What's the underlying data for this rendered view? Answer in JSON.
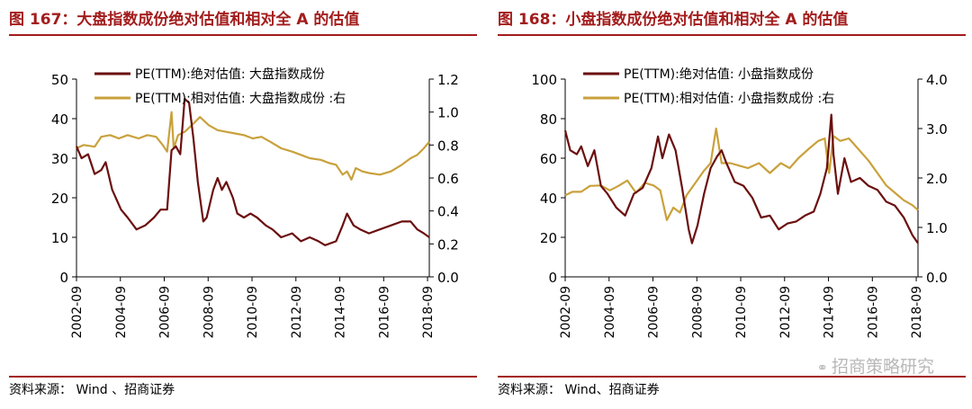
{
  "colors": {
    "absolute": "#6b0f0f",
    "relative": "#c9a13c",
    "accent": "#a31c1c"
  },
  "watermark": "招商策略研究",
  "watermark_icon": "wechat-icon",
  "charts": [
    {
      "id": "p1",
      "title": "图 167：大盘指数成份绝对估值和相对全 A 的估值",
      "source": "资料来源： Wind 、招商证券",
      "chart_data": {
        "type": "line",
        "x_range": [
          2002.67,
          2018.75
        ],
        "x_ticks": [
          "2002-09",
          "2004-09",
          "2006-09",
          "2008-09",
          "2010-09",
          "2012-09",
          "2014-09",
          "2016-09",
          "2018-09"
        ],
        "y_left": {
          "min": 0,
          "max": 50,
          "ticks": [
            "0",
            "10",
            "20",
            "30",
            "40",
            "50"
          ]
        },
        "y_right": {
          "min": 0,
          "max": 1.2,
          "ticks": [
            "0.0",
            "0.2",
            "0.4",
            "0.6",
            "0.8",
            "1.0",
            "1.2"
          ]
        },
        "legend": [
          "PE(TTM):绝对估值: 大盘指数成份",
          "PE(TTM):相对估值: 大盘指数成份 :右"
        ],
        "series": [
          {
            "name": "PE(TTM):绝对估值: 大盘指数成份",
            "axis": "left",
            "points": [
              [
                2002.67,
                33
              ],
              [
                2002.9,
                30
              ],
              [
                2003.2,
                31
              ],
              [
                2003.5,
                26
              ],
              [
                2003.8,
                27
              ],
              [
                2004.0,
                29
              ],
              [
                2004.3,
                22
              ],
              [
                2004.7,
                17
              ],
              [
                2005.0,
                15
              ],
              [
                2005.4,
                12
              ],
              [
                2005.8,
                13
              ],
              [
                2006.2,
                15
              ],
              [
                2006.5,
                17
              ],
              [
                2006.8,
                17
              ],
              [
                2007.0,
                32
              ],
              [
                2007.2,
                33
              ],
              [
                2007.4,
                31
              ],
              [
                2007.6,
                45
              ],
              [
                2007.8,
                44
              ],
              [
                2008.0,
                35
              ],
              [
                2008.2,
                24
              ],
              [
                2008.45,
                14
              ],
              [
                2008.6,
                15
              ],
              [
                2008.9,
                22
              ],
              [
                2009.1,
                25
              ],
              [
                2009.3,
                22
              ],
              [
                2009.5,
                24
              ],
              [
                2009.8,
                20
              ],
              [
                2010.0,
                16
              ],
              [
                2010.3,
                15
              ],
              [
                2010.6,
                16
              ],
              [
                2010.9,
                15
              ],
              [
                2011.3,
                13
              ],
              [
                2011.6,
                12
              ],
              [
                2012.0,
                10
              ],
              [
                2012.5,
                11
              ],
              [
                2012.9,
                9
              ],
              [
                2013.3,
                10
              ],
              [
                2013.7,
                9
              ],
              [
                2014.0,
                8
              ],
              [
                2014.5,
                9
              ],
              [
                2014.8,
                13
              ],
              [
                2015.0,
                16
              ],
              [
                2015.3,
                13
              ],
              [
                2015.6,
                12
              ],
              [
                2016.0,
                11
              ],
              [
                2016.5,
                12
              ],
              [
                2017.0,
                13
              ],
              [
                2017.5,
                14
              ],
              [
                2017.9,
                14
              ],
              [
                2018.2,
                12
              ],
              [
                2018.5,
                11
              ],
              [
                2018.75,
                10
              ]
            ]
          },
          {
            "name": "PE(TTM):相对估值: 大盘指数成份 :右",
            "axis": "right",
            "points": [
              [
                2002.67,
                0.78
              ],
              [
                2003.0,
                0.8
              ],
              [
                2003.5,
                0.79
              ],
              [
                2003.8,
                0.85
              ],
              [
                2004.2,
                0.86
              ],
              [
                2004.6,
                0.84
              ],
              [
                2005.0,
                0.86
              ],
              [
                2005.5,
                0.84
              ],
              [
                2005.9,
                0.86
              ],
              [
                2006.3,
                0.85
              ],
              [
                2006.6,
                0.8
              ],
              [
                2006.8,
                0.76
              ],
              [
                2007.0,
                1.0
              ],
              [
                2007.1,
                0.78
              ],
              [
                2007.3,
                0.86
              ],
              [
                2007.6,
                0.88
              ],
              [
                2008.0,
                0.93
              ],
              [
                2008.3,
                0.97
              ],
              [
                2008.7,
                0.92
              ],
              [
                2009.1,
                0.89
              ],
              [
                2009.5,
                0.88
              ],
              [
                2009.9,
                0.87
              ],
              [
                2010.3,
                0.86
              ],
              [
                2010.7,
                0.84
              ],
              [
                2011.1,
                0.85
              ],
              [
                2011.5,
                0.82
              ],
              [
                2012.0,
                0.78
              ],
              [
                2012.5,
                0.76
              ],
              [
                2012.9,
                0.74
              ],
              [
                2013.3,
                0.72
              ],
              [
                2013.8,
                0.71
              ],
              [
                2014.2,
                0.69
              ],
              [
                2014.5,
                0.68
              ],
              [
                2014.8,
                0.62
              ],
              [
                2015.0,
                0.64
              ],
              [
                2015.2,
                0.59
              ],
              [
                2015.4,
                0.66
              ],
              [
                2015.7,
                0.64
              ],
              [
                2016.0,
                0.63
              ],
              [
                2016.5,
                0.62
              ],
              [
                2017.0,
                0.64
              ],
              [
                2017.5,
                0.68
              ],
              [
                2017.9,
                0.72
              ],
              [
                2018.2,
                0.74
              ],
              [
                2018.5,
                0.78
              ],
              [
                2018.75,
                0.82
              ]
            ]
          }
        ]
      }
    },
    {
      "id": "p2",
      "title": "图 168：小盘指数成份绝对估值和相对全 A 的估值",
      "source": "资料来源： Wind、招商证券",
      "chart_data": {
        "type": "line",
        "x_range": [
          2002.67,
          2018.75
        ],
        "x_ticks": [
          "2002-09",
          "2004-09",
          "2006-09",
          "2008-09",
          "2010-09",
          "2012-09",
          "2014-09",
          "2016-09",
          "2018-09"
        ],
        "y_left": {
          "min": 0,
          "max": 100,
          "ticks": [
            "0",
            "20",
            "40",
            "60",
            "80",
            "100"
          ]
        },
        "y_right": {
          "min": 0,
          "max": 4.0,
          "ticks": [
            "0.0",
            "1.0",
            "2.0",
            "3.0",
            "4.0"
          ]
        },
        "legend": [
          "PE(TTM):绝对估值: 小盘指数成份",
          "PE(TTM):相对估值: 小盘指数成份 :右"
        ],
        "series": [
          {
            "name": "PE(TTM):绝对估值: 小盘指数成份",
            "axis": "left",
            "points": [
              [
                2002.67,
                74
              ],
              [
                2002.9,
                64
              ],
              [
                2003.2,
                62
              ],
              [
                2003.4,
                66
              ],
              [
                2003.7,
                56
              ],
              [
                2004.0,
                64
              ],
              [
                2004.3,
                46
              ],
              [
                2004.6,
                42
              ],
              [
                2005.0,
                35
              ],
              [
                2005.4,
                31
              ],
              [
                2005.8,
                42
              ],
              [
                2006.2,
                45
              ],
              [
                2006.6,
                55
              ],
              [
                2006.9,
                71
              ],
              [
                2007.1,
                60
              ],
              [
                2007.4,
                72
              ],
              [
                2007.7,
                64
              ],
              [
                2008.0,
                45
              ],
              [
                2008.3,
                24
              ],
              [
                2008.45,
                17
              ],
              [
                2008.7,
                26
              ],
              [
                2009.0,
                42
              ],
              [
                2009.3,
                55
              ],
              [
                2009.6,
                61
              ],
              [
                2009.8,
                64
              ],
              [
                2010.0,
                58
              ],
              [
                2010.4,
                48
              ],
              [
                2010.8,
                46
              ],
              [
                2011.2,
                40
              ],
              [
                2011.6,
                30
              ],
              [
                2012.0,
                31
              ],
              [
                2012.4,
                24
              ],
              [
                2012.8,
                27
              ],
              [
                2013.2,
                28
              ],
              [
                2013.6,
                31
              ],
              [
                2014.0,
                33
              ],
              [
                2014.3,
                42
              ],
              [
                2014.6,
                55
              ],
              [
                2014.8,
                82
              ],
              [
                2014.9,
                62
              ],
              [
                2015.1,
                42
              ],
              [
                2015.4,
                60
              ],
              [
                2015.7,
                48
              ],
              [
                2016.1,
                50
              ],
              [
                2016.5,
                46
              ],
              [
                2016.9,
                44
              ],
              [
                2017.3,
                38
              ],
              [
                2017.7,
                36
              ],
              [
                2018.1,
                30
              ],
              [
                2018.5,
                21
              ],
              [
                2018.75,
                17
              ]
            ]
          },
          {
            "name": "PE(TTM):相对估值: 小盘指数成份 :右",
            "axis": "right",
            "points": [
              [
                2002.67,
                1.65
              ],
              [
                2003.0,
                1.72
              ],
              [
                2003.4,
                1.72
              ],
              [
                2003.8,
                1.84
              ],
              [
                2004.3,
                1.85
              ],
              [
                2004.7,
                1.75
              ],
              [
                2005.1,
                1.84
              ],
              [
                2005.5,
                1.95
              ],
              [
                2005.9,
                1.7
              ],
              [
                2006.3,
                1.9
              ],
              [
                2006.7,
                1.85
              ],
              [
                2007.0,
                1.75
              ],
              [
                2007.3,
                1.15
              ],
              [
                2007.6,
                1.4
              ],
              [
                2007.9,
                1.3
              ],
              [
                2008.2,
                1.65
              ],
              [
                2008.6,
                1.9
              ],
              [
                2009.0,
                2.15
              ],
              [
                2009.3,
                2.3
              ],
              [
                2009.55,
                3.0
              ],
              [
                2009.8,
                2.3
              ],
              [
                2010.2,
                2.3
              ],
              [
                2010.6,
                2.25
              ],
              [
                2011.0,
                2.2
              ],
              [
                2011.5,
                2.3
              ],
              [
                2012.0,
                2.1
              ],
              [
                2012.5,
                2.3
              ],
              [
                2012.9,
                2.2
              ],
              [
                2013.3,
                2.4
              ],
              [
                2013.8,
                2.6
              ],
              [
                2014.2,
                2.75
              ],
              [
                2014.5,
                2.8
              ],
              [
                2014.7,
                2.1
              ],
              [
                2014.9,
                2.85
              ],
              [
                2015.2,
                2.75
              ],
              [
                2015.6,
                2.8
              ],
              [
                2016.0,
                2.6
              ],
              [
                2016.5,
                2.35
              ],
              [
                2016.9,
                2.1
              ],
              [
                2017.3,
                1.85
              ],
              [
                2017.7,
                1.7
              ],
              [
                2018.1,
                1.55
              ],
              [
                2018.5,
                1.45
              ],
              [
                2018.75,
                1.35
              ]
            ]
          }
        ]
      }
    }
  ]
}
